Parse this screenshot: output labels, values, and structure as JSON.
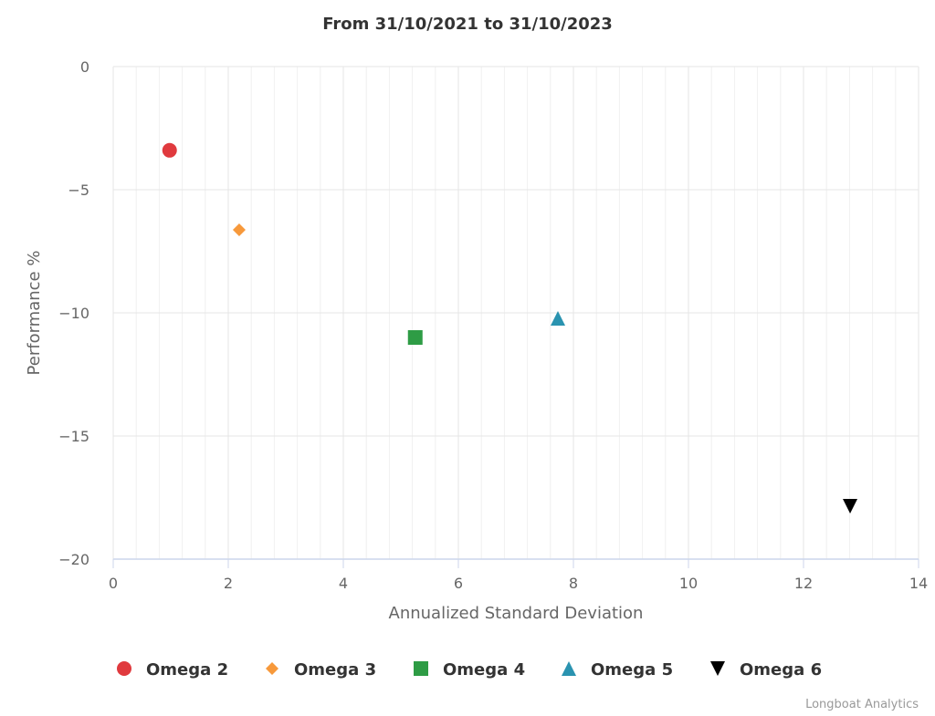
{
  "chart_data": {
    "type": "scatter",
    "title": "From 31/10/2021 to 31/10/2023",
    "xlabel": "Annualized Standard Deviation",
    "ylabel": "Performance %",
    "xlim": [
      0,
      14
    ],
    "ylim": [
      -20,
      0
    ],
    "xticks": [
      0,
      2,
      4,
      6,
      8,
      10,
      12,
      14
    ],
    "yticks": [
      0,
      -5,
      -10,
      -15,
      -20
    ],
    "ytick_labels": [
      "0",
      "−5",
      "−10",
      "−15",
      "−20"
    ],
    "x_minor_interval": 0.4,
    "grid": true,
    "legend_position": "bottom",
    "series": [
      {
        "name": "Omega 2",
        "marker": "circle",
        "color": "#e03a3e",
        "x": 0.98,
        "y": -3.4
      },
      {
        "name": "Omega 3",
        "marker": "diamond",
        "color": "#f7993b",
        "x": 2.19,
        "y": -6.63
      },
      {
        "name": "Omega 4",
        "marker": "square",
        "color": "#2e9c45",
        "x": 5.25,
        "y": -11.0
      },
      {
        "name": "Omega 5",
        "marker": "triangle",
        "color": "#2a93b0",
        "x": 7.73,
        "y": -10.22
      },
      {
        "name": "Omega 6",
        "marker": "triangle-down",
        "color": "#000000",
        "x": 12.81,
        "y": -17.85
      }
    ]
  },
  "credit": "Longboat Analytics"
}
